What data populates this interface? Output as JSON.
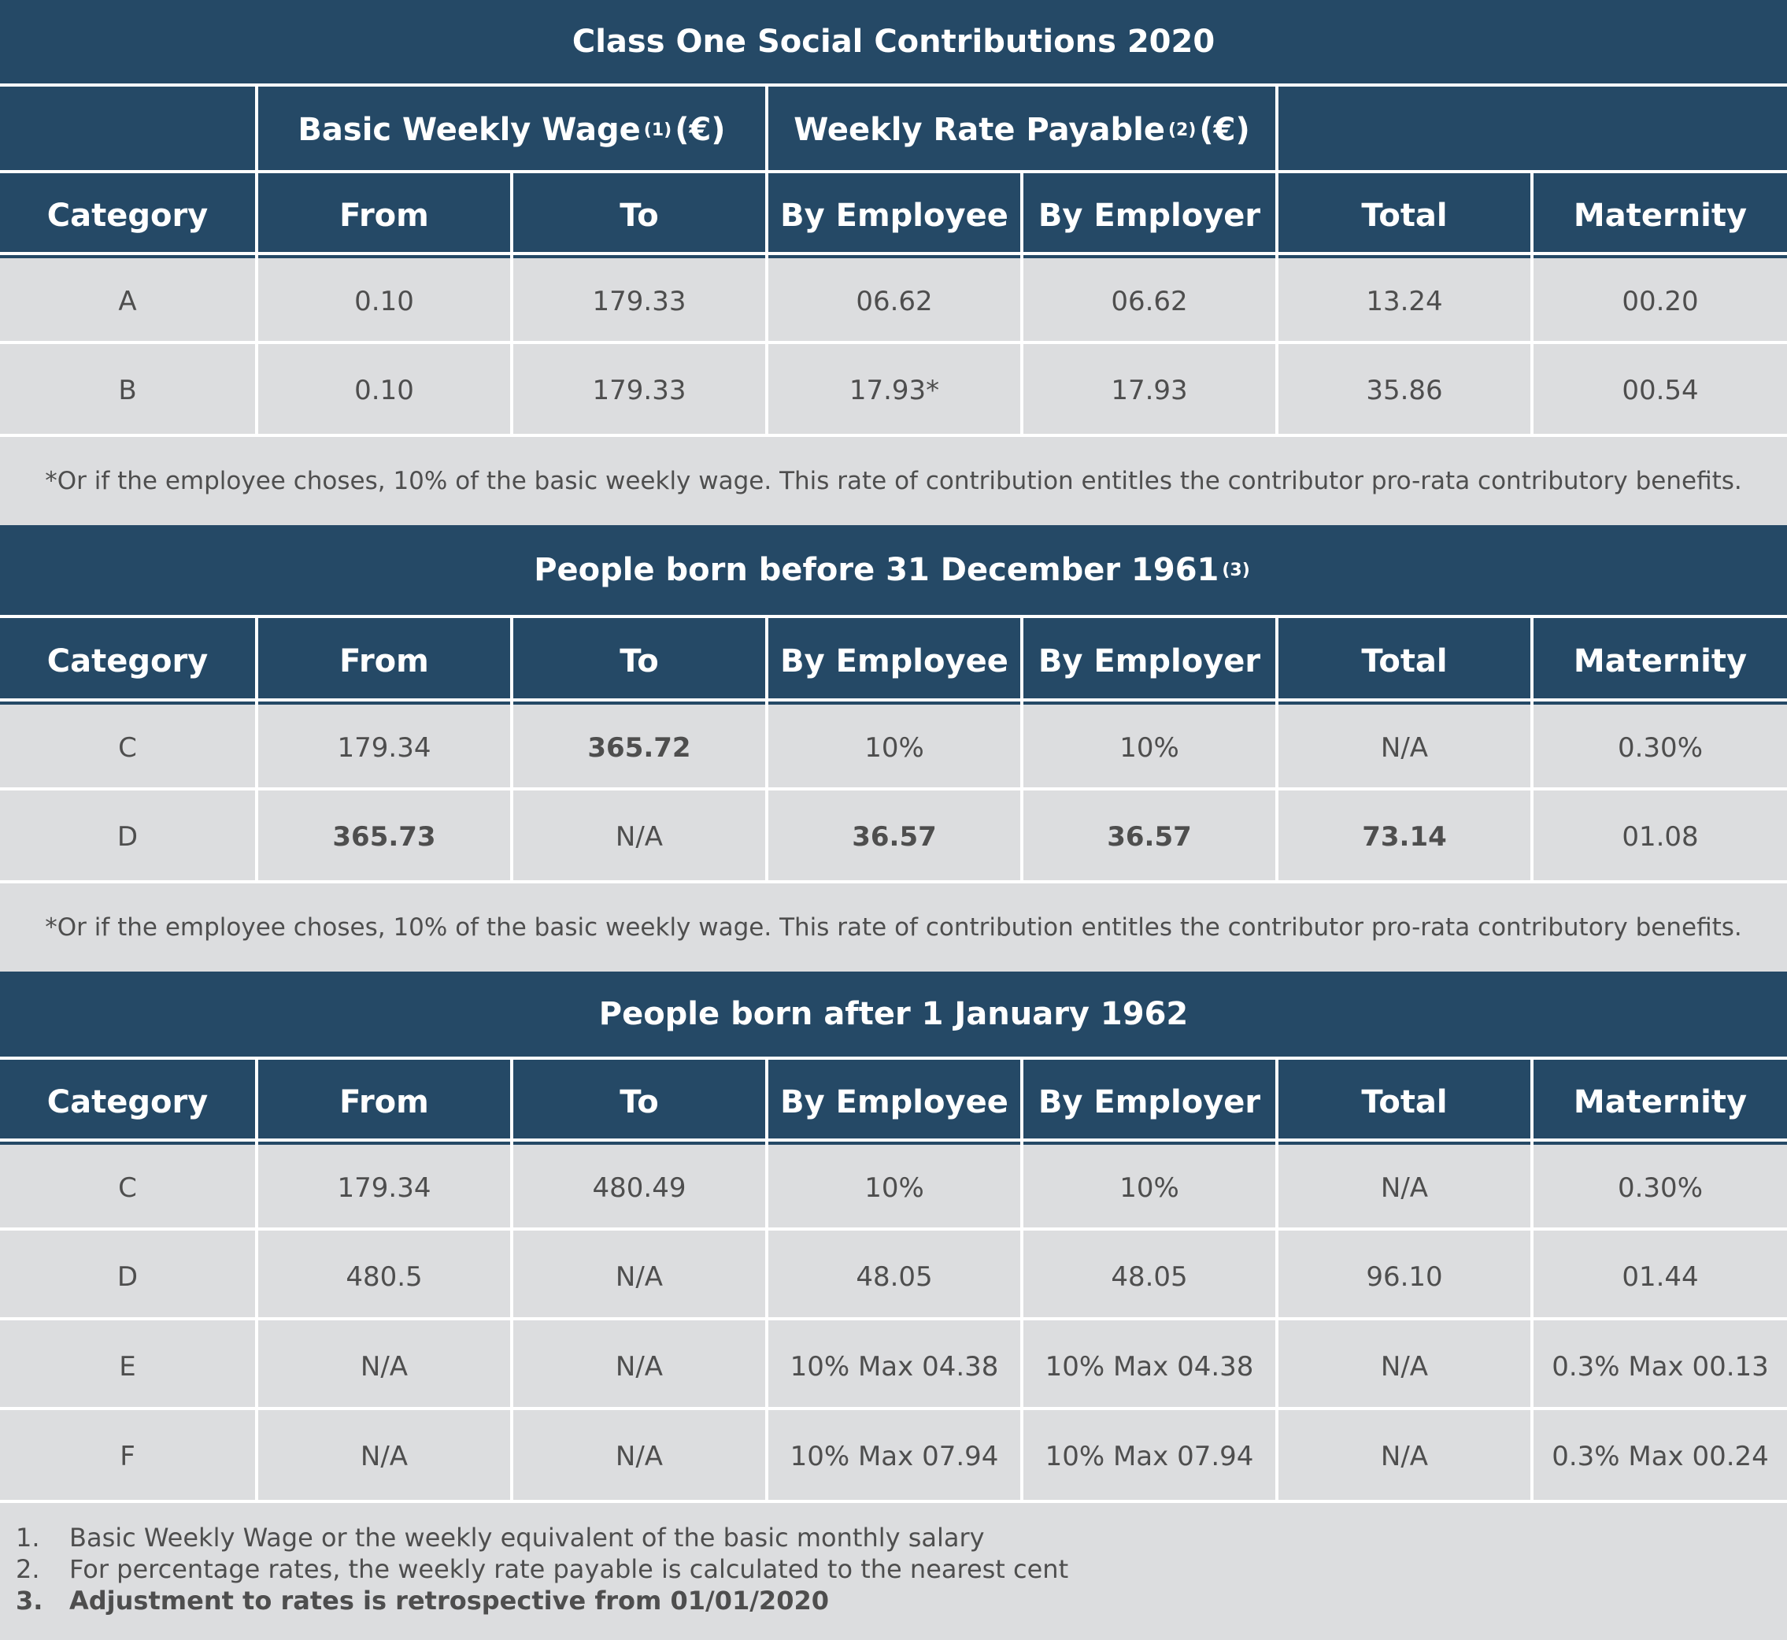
{
  "columns": [
    "Category",
    "From",
    "To",
    "By Employee",
    "By Employer",
    "Total",
    "Maternity"
  ],
  "table1": {
    "title": "Class One Social Contributions 2020",
    "group_basic": "Basic Weekly Wage",
    "group_basic_sup": "(1)",
    "group_basic_unit": "(€)",
    "group_rate": "Weekly Rate Payable",
    "group_rate_sup": "(2)",
    "group_rate_unit": "(€)",
    "rows": [
      [
        "A",
        "0.10",
        "179.33",
        "06.62",
        "06.62",
        "13.24",
        "00.20"
      ],
      [
        "B",
        "0.10",
        "179.33",
        "17.93*",
        "17.93",
        "35.86",
        "00.54"
      ]
    ],
    "note": "*Or if the employee choses, 10% of the basic weekly wage. This rate of contribution entitles the contributor pro-rata contributory benefits."
  },
  "table2": {
    "title": "People born before 31 December 1961",
    "title_sup": "(3)",
    "rows": [
      [
        "C",
        "179.34",
        "365.72",
        "10%",
        "10%",
        "N/A",
        "0.30%"
      ],
      [
        "D",
        "365.73",
        "N/A",
        "36.57",
        "36.57",
        "73.14",
        "01.08"
      ]
    ],
    "note": "*Or if the employee choses, 10% of the basic weekly wage. This rate of contribution entitles the contributor pro-rata contributory benefits."
  },
  "table3": {
    "title": "People born after 1 January 1962",
    "rows": [
      [
        "C",
        "179.34",
        "480.49",
        "10%",
        "10%",
        "N/A",
        "0.30%"
      ],
      [
        "D",
        "480.5",
        "N/A",
        "48.05",
        "48.05",
        "96.10",
        "01.44"
      ],
      [
        "E",
        "N/A",
        "N/A",
        "10% Max 04.38",
        "10% Max 04.38",
        "N/A",
        "0.3% Max 00.13"
      ],
      [
        "F",
        "N/A",
        "N/A",
        "10% Max 07.94",
        "10% Max 07.94",
        "N/A",
        "0.3% Max 00.24"
      ]
    ]
  },
  "footnotes": [
    {
      "num": "1.",
      "text": "Basic Weekly Wage or the weekly equivalent of the basic monthly salary"
    },
    {
      "num": "2.",
      "text": "For percentage rates, the weekly rate payable is calculated to the nearest cent"
    },
    {
      "num": "3.",
      "text": "Adjustment to rates is retrospective from 01/01/2020"
    }
  ]
}
